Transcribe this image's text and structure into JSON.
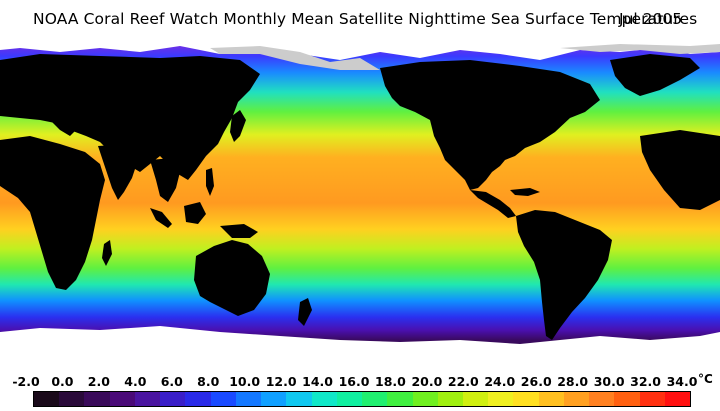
{
  "title": "NOAA Coral Reef Watch Monthly Mean Satellite Nighttime Sea Surface Temperatures",
  "date": "Jul 2005",
  "legend": {
    "labels": [
      "-2.0",
      "0.0",
      "2.0",
      "4.0",
      "6.0",
      "8.0",
      "10.0",
      "12.0",
      "14.0",
      "16.0",
      "18.0",
      "20.0",
      "22.0",
      "24.0",
      "26.0",
      "28.0",
      "30.0",
      "32.0",
      "34.0"
    ],
    "unit": "°C",
    "colors": [
      "#1a0a1a",
      "#2a0a3a",
      "#3a0a5a",
      "#4a0a78",
      "#4a14a0",
      "#3a1ec8",
      "#2a2ae8",
      "#1a4aff",
      "#1478ff",
      "#10a0ff",
      "#10c8f0",
      "#10e8c8",
      "#10f0a0",
      "#20f070",
      "#40f040",
      "#70f020",
      "#a0f010",
      "#d0f010",
      "#f0f020",
      "#ffe020",
      "#ffc020",
      "#ffa020",
      "#ff8020",
      "#ff6010",
      "#ff3010",
      "#ff1010"
    ],
    "min_c": -2.0,
    "max_c": 34.0
  },
  "colors": {
    "land": "#000000",
    "ice": "#ffffff",
    "background": "#ffffff"
  }
}
